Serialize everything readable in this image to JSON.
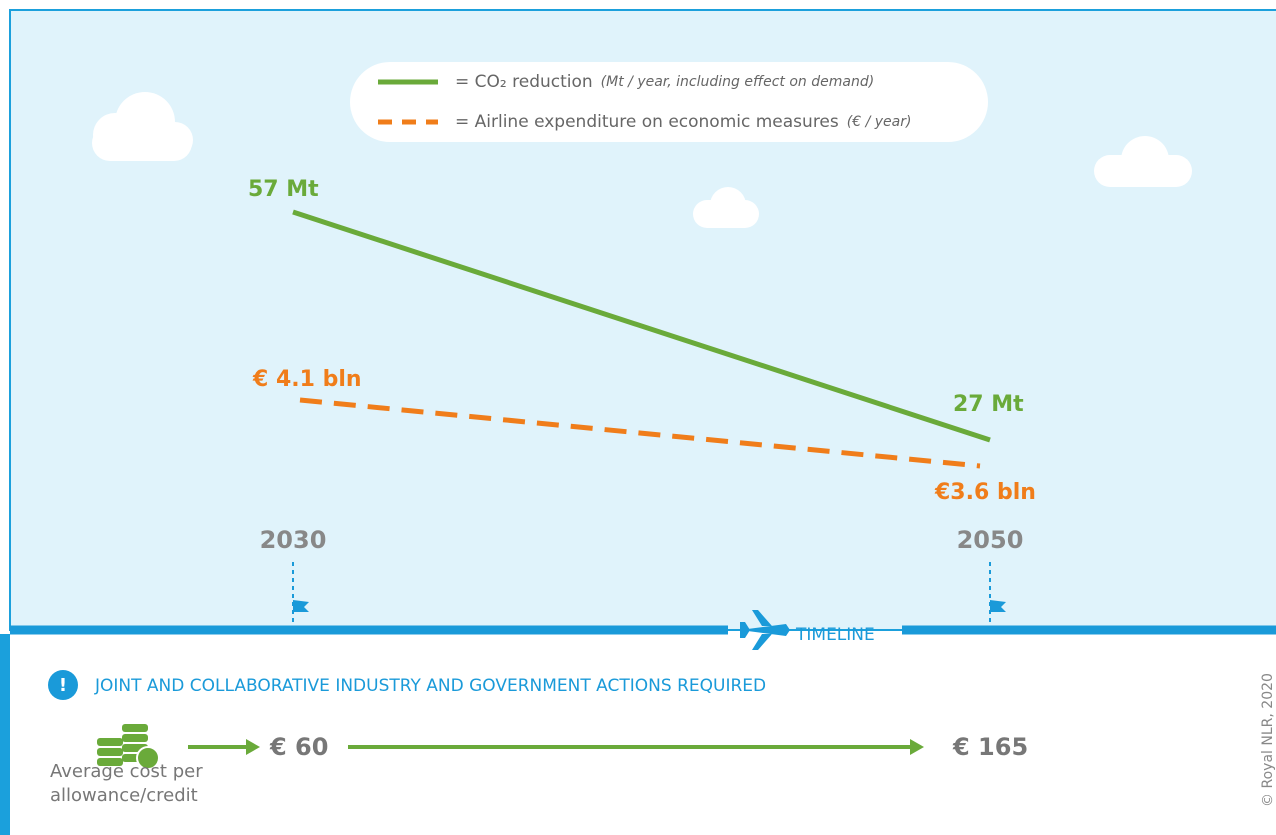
{
  "chart_data": {
    "type": "line",
    "categories": [
      "2030",
      "2050"
    ],
    "series": [
      {
        "name": "= CO₂ reduction",
        "note": "(Mt / year, including effect on demand)",
        "color": "#6aaa3a",
        "style": "solid",
        "values": [
          57,
          27
        ],
        "value_labels": [
          "57 Mt",
          "27 Mt"
        ]
      },
      {
        "name": "= Airline expenditure on economic measures",
        "note": "(€ / year)",
        "color": "#f07d1a",
        "style": "dashed",
        "values": [
          4.1,
          3.6
        ],
        "value_labels": [
          "€ 4.1 bln",
          "€3.6 bln"
        ]
      }
    ],
    "timeline_label": "TIMELINE"
  },
  "notice": "JOINT AND COLLABORATIVE INDUSTRY AND GOVERNMENT ACTIONS REQUIRED",
  "cost": {
    "label": "Average cost per allowance/credit",
    "values": [
      60,
      165
    ],
    "value_labels": [
      "€ 60",
      "€ 165"
    ]
  },
  "copyright": "© Royal NLR, 2020"
}
